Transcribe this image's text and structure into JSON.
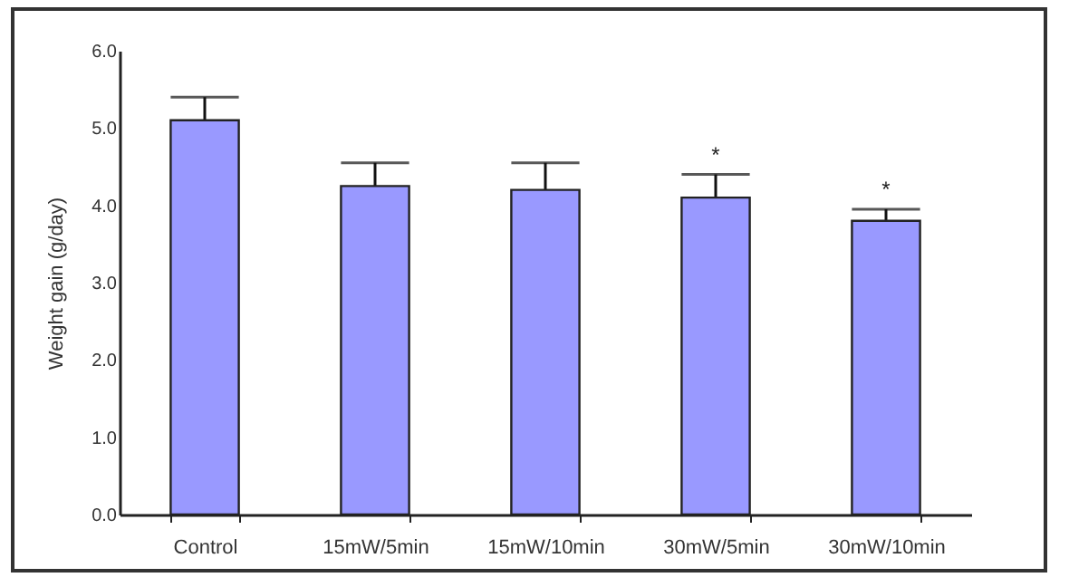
{
  "chart_data": {
    "type": "bar",
    "ylabel": "Weight gain (g/day)",
    "categories": [
      "Control",
      "15mW/5min",
      "15mW/10min",
      "30mW/5min",
      "30mW/10min"
    ],
    "values": [
      5.1,
      4.25,
      4.2,
      4.1,
      3.8
    ],
    "errors": [
      0.3,
      0.3,
      0.35,
      0.3,
      0.15
    ],
    "color": "#9999ff",
    "ylim": [
      0,
      6
    ],
    "yticks": [
      {
        "value": 0,
        "label": "0.0"
      },
      {
        "value": 1,
        "label": "1.0"
      },
      {
        "value": 2,
        "label": "2.0"
      },
      {
        "value": 3,
        "label": "3.0"
      },
      {
        "value": 4,
        "label": "4.0"
      },
      {
        "value": 5,
        "label": "5.0"
      },
      {
        "value": 6,
        "label": "6.0"
      }
    ],
    "grid": false,
    "annotations": [
      {
        "text": "*",
        "x": "30mW/5min",
        "y": 4.4
      },
      {
        "text": "*",
        "x": "30mW/10min",
        "y": 3.95
      }
    ]
  }
}
